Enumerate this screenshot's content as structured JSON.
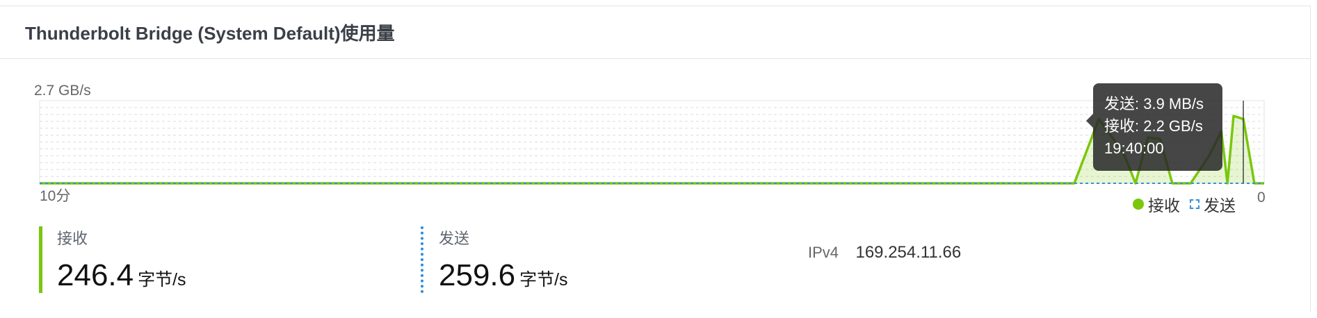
{
  "panel": {
    "title": "Thunderbolt Bridge (System Default)使用量"
  },
  "chart_data": {
    "type": "area",
    "y_max_label": "2.7 GB/s",
    "x_start_label": "10分",
    "x_end_label": "0",
    "ylim": [
      0,
      2.7
    ],
    "x_unit": "minutes ago",
    "grid": true,
    "legend_position": "bottom-right",
    "series": [
      {
        "name": "接收",
        "color": "#7ac70c",
        "style": "solid-area",
        "x": [
          10,
          1.55,
          1.35,
          1.15,
          1.05,
          0.95,
          0.85,
          0.75,
          0.6,
          0.45,
          0.35,
          0.3,
          0.25,
          0.17,
          0.08,
          0
        ],
        "values": [
          0,
          0,
          2.1,
          1.0,
          0,
          1.5,
          1.45,
          0,
          0,
          0.9,
          1.7,
          0,
          2.2,
          2.1,
          0,
          0
        ]
      },
      {
        "name": "发送",
        "color": "#3a8fd6",
        "style": "dashed-line",
        "x": [
          10,
          0
        ],
        "values": [
          0,
          0
        ]
      }
    ]
  },
  "legend": {
    "rx_label": "接收",
    "tx_label": "发送"
  },
  "tooltip": {
    "send": "发送: 3.9 MB/s",
    "receive": "接收: 2.2 GB/s",
    "time": "19:40:00"
  },
  "stats": {
    "receive": {
      "label": "接收",
      "value": "246.4",
      "unit": "字节/s"
    },
    "send": {
      "label": "发送",
      "value": "259.6",
      "unit": "字节/s"
    }
  },
  "ipv4": {
    "label": "IPv4",
    "value": "169.254.11.66"
  },
  "colors": {
    "receive": "#7ac70c",
    "send": "#3a8fd6",
    "tooltip_bg": "#282828"
  }
}
